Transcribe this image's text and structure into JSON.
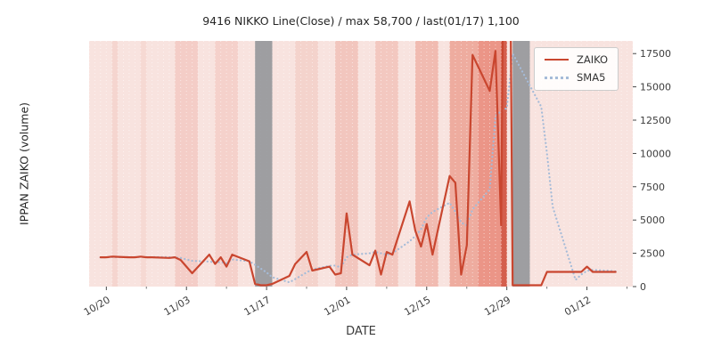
{
  "title": "9416 NIKKO Line(Close) / max 58,700 / last(01/17) 1,100",
  "axes": {
    "x_label": "DATE",
    "y_label": "IPPAN ZAIKO (volume)"
  },
  "legend": {
    "items": [
      {
        "label": "ZAIKO",
        "style": "solid"
      },
      {
        "label": "SMA5",
        "style": "dotted"
      }
    ]
  },
  "chart_data": {
    "type": "line",
    "title": "9416 NIKKO Line(Close) / max 58,700 / last(01/17) 1,100",
    "xlabel": "DATE",
    "ylabel": "IPPAN ZAIKO (volume)",
    "x_ticks": [
      "10/20",
      "11/03",
      "11/17",
      "12/01",
      "12/15",
      "12/29",
      "01/12"
    ],
    "x_minor_ticks": [
      "10/27",
      "11/10",
      "11/24",
      "12/08",
      "12/22",
      "01/05",
      "01/19"
    ],
    "y_ticks": [
      0,
      2500,
      5000,
      7500,
      10000,
      12500,
      15000,
      17500
    ],
    "ylim": [
      0,
      18450
    ],
    "x_range": [
      "10/17",
      "01/20"
    ],
    "grid": "vertical dotted white, daily",
    "plot_background": "#f8e3df",
    "legend_position": "upper right",
    "x_dates": [
      "10/19",
      "10/20",
      "10/21",
      "10/24",
      "10/25",
      "10/26",
      "10/27",
      "10/28",
      "10/31",
      "11/01",
      "11/02",
      "11/04",
      "11/07",
      "11/08",
      "11/09",
      "11/10",
      "11/11",
      "11/14",
      "11/15",
      "11/16",
      "11/17",
      "11/18",
      "11/21",
      "11/22",
      "11/24",
      "11/25",
      "11/28",
      "11/29",
      "11/30",
      "12/01",
      "12/02",
      "12/05",
      "12/06",
      "12/07",
      "12/08",
      "12/09",
      "12/12",
      "12/13",
      "12/14",
      "12/15",
      "12/16",
      "12/19",
      "12/20",
      "12/21",
      "12/22",
      "12/23",
      "12/26",
      "12/27",
      "12/28",
      "12/29",
      "12/30",
      "01/04",
      "01/05",
      "01/06",
      "01/10",
      "01/11",
      "01/12",
      "01/13",
      "01/16",
      "01/17"
    ],
    "series": [
      {
        "name": "ZAIKO",
        "color": "#c9462f",
        "style": "solid",
        "values": [
          2200,
          2200,
          2250,
          2200,
          2200,
          2250,
          2200,
          2200,
          2150,
          2200,
          2000,
          1000,
          2400,
          1700,
          2200,
          1500,
          2400,
          1900,
          200,
          100,
          100,
          200,
          800,
          1700,
          2600,
          1200,
          1500,
          900,
          1000,
          5500,
          2400,
          1600,
          2700,
          900,
          2600,
          2400,
          6400,
          4200,
          3000,
          4700,
          2400,
          8300,
          7800,
          900,
          3100,
          17400,
          14700,
          17700,
          4600,
          58700,
          100,
          100,
          1100,
          1100,
          1100,
          1100,
          1500,
          1100,
          1100,
          1100
        ]
      },
      {
        "name": "SMA5",
        "color": "#a5bbd8",
        "style": "dotted",
        "values": [
          2200,
          2200,
          2210,
          2210,
          2215,
          2220,
          2220,
          2215,
          2210,
          2190,
          2150,
          1930,
          1880,
          1820,
          1840,
          1760,
          2040,
          1900,
          1640,
          1360,
          1060,
          700,
          320,
          560,
          1060,
          1300,
          1560,
          1580,
          1440,
          2200,
          2400,
          2500,
          2600,
          2500,
          2400,
          2500,
          3400,
          3800,
          4300,
          5200,
          5600,
          6300,
          5600,
          4800,
          4600,
          5800,
          7300,
          12800,
          13200,
          13400,
          17500,
          13500,
          10000,
          6000,
          500,
          900,
          1180,
          1250,
          1180,
          1140
        ]
      }
    ],
    "bands": [
      {
        "start": "10/21",
        "end": "10/22",
        "color": "#e06048",
        "opacity": 0.1,
        "layer": "back"
      },
      {
        "start": "10/26",
        "end": "10/27",
        "color": "#e06048",
        "opacity": 0.08,
        "layer": "back"
      },
      {
        "start": "11/01",
        "end": "11/05",
        "color": "#e06048",
        "opacity": 0.16,
        "layer": "back"
      },
      {
        "start": "11/08",
        "end": "11/12",
        "color": "#e06048",
        "opacity": 0.13,
        "layer": "back"
      },
      {
        "start": "11/22",
        "end": "11/26",
        "color": "#e06048",
        "opacity": 0.12,
        "layer": "back"
      },
      {
        "start": "11/29",
        "end": "12/03",
        "color": "#e06048",
        "opacity": 0.22,
        "layer": "back"
      },
      {
        "start": "12/06",
        "end": "12/10",
        "color": "#e06048",
        "opacity": 0.2,
        "layer": "back"
      },
      {
        "start": "12/13",
        "end": "12/17",
        "color": "#e06048",
        "opacity": 0.3,
        "layer": "back"
      },
      {
        "start": "12/19",
        "end": "12/24",
        "color": "#e06048",
        "opacity": 0.42,
        "layer": "back"
      },
      {
        "start": "12/24",
        "end": "12/29",
        "color": "#dd4830",
        "opacity": 0.5,
        "layer": "back"
      },
      {
        "start": "12/28",
        "end": "12/29",
        "color": "#c43a24",
        "opacity": 0.6,
        "layer": "back"
      },
      {
        "start": "11/15",
        "end": "11/18",
        "color": "#8e9296",
        "opacity": 0.85,
        "layer": "front"
      },
      {
        "start": "12/30",
        "end": "01/02",
        "color": "#8e9296",
        "opacity": 0.85,
        "layer": "front"
      }
    ]
  }
}
